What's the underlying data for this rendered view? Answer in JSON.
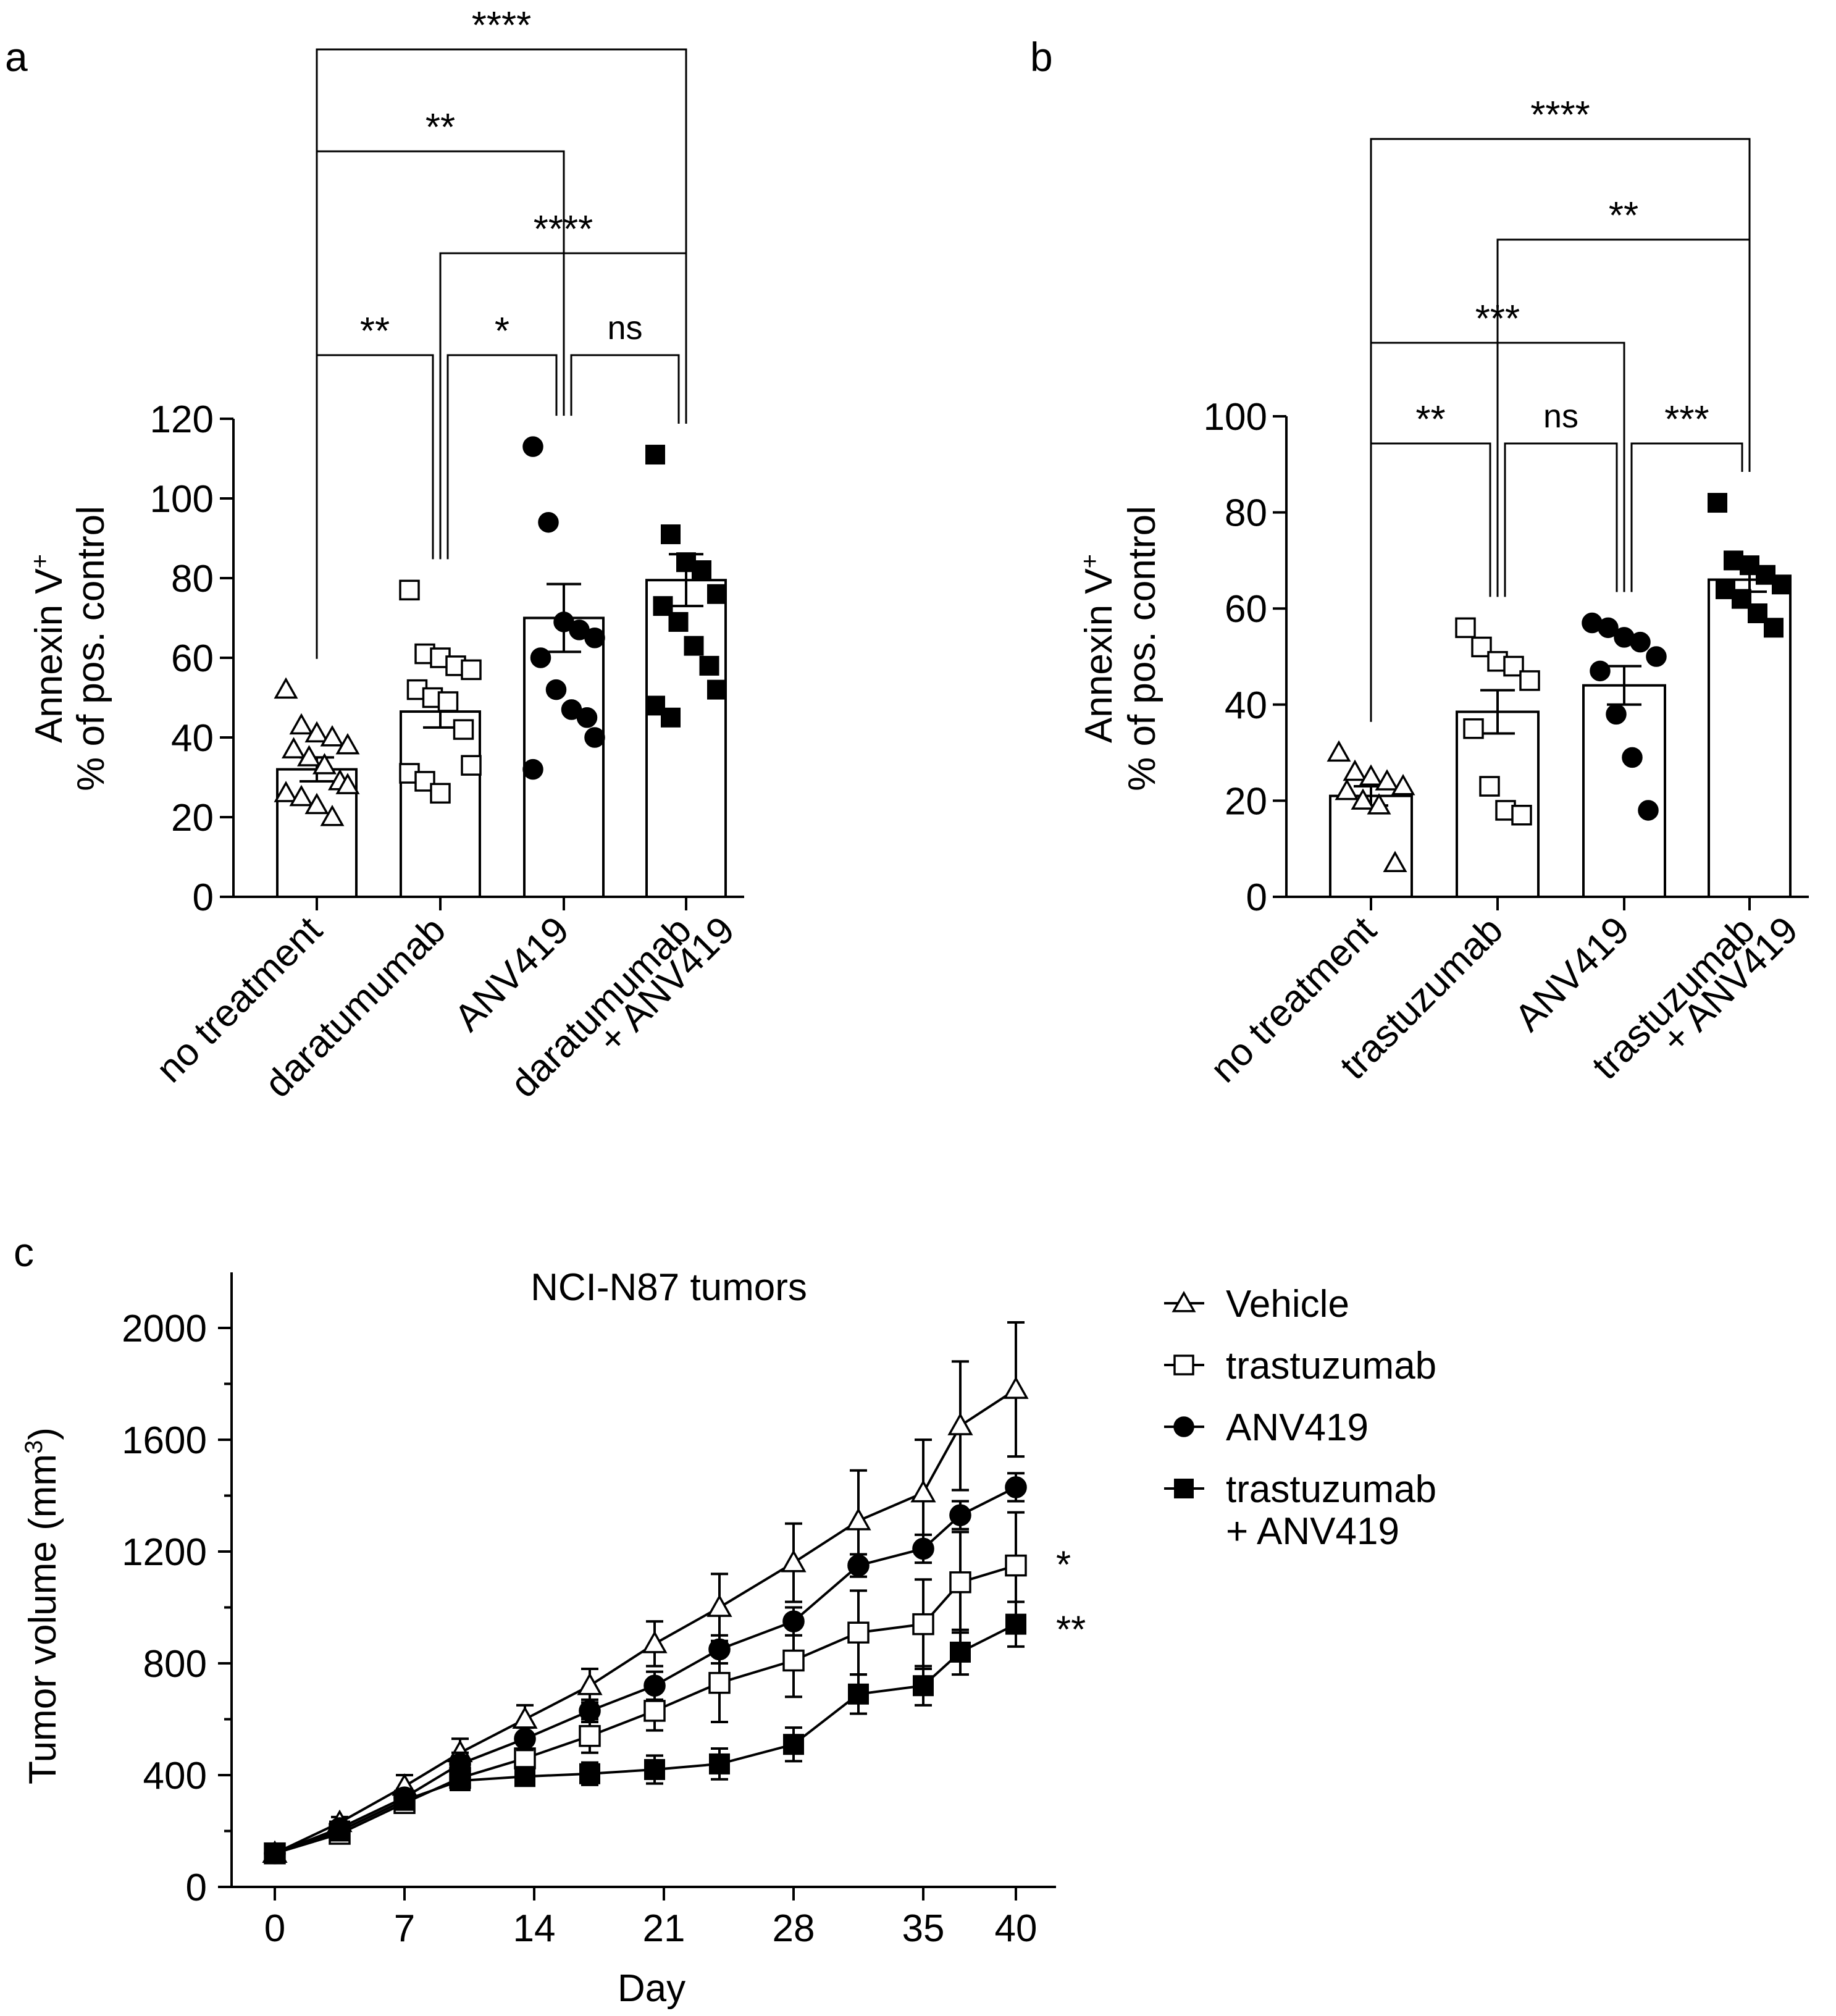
{
  "chart_data": [
    {
      "panel": "a",
      "type": "bar",
      "ylabel_line1": "Annexin V",
      "ylabel_sup": "+",
      "ylabel_line2": "% of pos. control",
      "ylim": [
        0,
        120
      ],
      "yticks": [
        0,
        20,
        40,
        60,
        80,
        100,
        120
      ],
      "categories": [
        {
          "label_lines": [
            "no treatment"
          ],
          "marker": "triangle-open",
          "mean": 32,
          "sem": 3,
          "points": [
            52,
            43,
            41,
            40,
            38,
            37,
            35,
            33,
            29,
            28,
            26,
            25,
            23,
            20
          ]
        },
        {
          "label_lines": [
            "daratumumab"
          ],
          "marker": "square-open",
          "mean": 46.5,
          "sem": 4,
          "points": [
            77,
            61,
            60,
            58,
            57,
            52,
            50,
            49,
            42,
            33,
            31,
            29,
            26
          ]
        },
        {
          "label_lines": [
            "ANV419"
          ],
          "marker": "circle-filled",
          "mean": 70,
          "sem": 8.5,
          "points": [
            113,
            94,
            69,
            67,
            65,
            60,
            52,
            47,
            45,
            40,
            32
          ]
        },
        {
          "label_lines": [
            "daratumumab",
            "+ ANV419"
          ],
          "marker": "square-filled",
          "mean": 79.5,
          "sem": 6.5,
          "points": [
            111,
            91,
            84,
            82,
            76,
            73,
            69,
            63,
            58,
            52,
            48,
            45
          ]
        }
      ],
      "comparisons": [
        {
          "from": 0,
          "to": 1,
          "label": "**"
        },
        {
          "from": 1,
          "to": 2,
          "label": "*"
        },
        {
          "from": 2,
          "to": 3,
          "label": "ns"
        },
        {
          "from": 1,
          "to": 3,
          "label": "****"
        },
        {
          "from": 0,
          "to": 2,
          "label": "**"
        },
        {
          "from": 0,
          "to": 3,
          "label": "****"
        }
      ]
    },
    {
      "panel": "b",
      "type": "bar",
      "ylabel_line1": "Annexin V",
      "ylabel_sup": "+",
      "ylabel_line2": "% of pos. control",
      "ylim": [
        0,
        100
      ],
      "yticks": [
        0,
        20,
        40,
        60,
        80,
        100
      ],
      "categories": [
        {
          "label_lines": [
            "no treatment"
          ],
          "marker": "triangle-open",
          "mean": 21,
          "sem": 2,
          "points": [
            30,
            26,
            25,
            24,
            23,
            22,
            20,
            19,
            7
          ]
        },
        {
          "label_lines": [
            "trastuzumab"
          ],
          "marker": "square-open",
          "mean": 38.5,
          "sem": 4.5,
          "points": [
            56,
            52,
            49,
            48,
            45,
            35,
            23,
            18,
            17
          ]
        },
        {
          "label_lines": [
            "ANV419"
          ],
          "marker": "circle-filled",
          "mean": 44,
          "sem": 4,
          "points": [
            57,
            56,
            54,
            53,
            50,
            47,
            38,
            29,
            18
          ]
        },
        {
          "label_lines": [
            "trastuzumab",
            "+ ANV419"
          ],
          "marker": "square-filled",
          "mean": 66,
          "sem": 2.5,
          "points": [
            82,
            70,
            69,
            67,
            65,
            64,
            62,
            59,
            56
          ]
        }
      ],
      "comparisons": [
        {
          "from": 0,
          "to": 1,
          "label": "**"
        },
        {
          "from": 1,
          "to": 2,
          "label": "ns"
        },
        {
          "from": 2,
          "to": 3,
          "label": "***"
        },
        {
          "from": 0,
          "to": 2,
          "label": "***"
        },
        {
          "from": 1,
          "to": 3,
          "label": "**"
        },
        {
          "from": 0,
          "to": 3,
          "label": "****"
        }
      ]
    },
    {
      "panel": "c",
      "type": "line",
      "title": "NCI-N87 tumors",
      "xlabel": "Day",
      "ylabel": "Tumor volume (mm",
      "ylabel_sup": "3",
      "ylabel_end": ")",
      "xlim": [
        0,
        40
      ],
      "ylim": [
        0,
        2000
      ],
      "xticks": [
        0,
        7,
        14,
        21,
        28,
        35,
        40
      ],
      "yticks": [
        0,
        400,
        800,
        1200,
        1600,
        2000
      ],
      "series": [
        {
          "name": "Vehicle",
          "marker": "triangle-open",
          "x": [
            0,
            3.5,
            7,
            10,
            13.5,
            17,
            20.5,
            24,
            28,
            31.5,
            35,
            37,
            40
          ],
          "y": [
            120,
            230,
            360,
            480,
            600,
            720,
            870,
            1000,
            1160,
            1310,
            1410,
            1650,
            1780
          ],
          "err": [
            10,
            20,
            40,
            50,
            50,
            60,
            80,
            120,
            140,
            180,
            190,
            230,
            240
          ],
          "significance": ""
        },
        {
          "name": "trastuzumab",
          "marker": "square-open",
          "x": [
            0,
            3.5,
            7,
            10,
            13.5,
            17,
            20.5,
            24,
            28,
            31.5,
            35,
            37,
            40
          ],
          "y": [
            120,
            190,
            300,
            390,
            460,
            540,
            630,
            730,
            810,
            910,
            940,
            1090,
            1150
          ],
          "err": [
            10,
            20,
            30,
            40,
            50,
            60,
            70,
            140,
            130,
            150,
            160,
            180,
            190
          ],
          "significance": "*"
        },
        {
          "name": "ANV419",
          "marker": "circle-filled",
          "x": [
            0,
            3.5,
            7,
            10,
            13.5,
            17,
            20.5,
            24,
            28,
            31.5,
            35,
            37,
            40
          ],
          "y": [
            120,
            210,
            320,
            440,
            530,
            630,
            720,
            850,
            950,
            1150,
            1210,
            1330,
            1430
          ],
          "err": [
            10,
            20,
            30,
            40,
            40,
            40,
            50,
            50,
            50,
            40,
            50,
            50,
            50
          ],
          "significance": ""
        },
        {
          "name": "trastuzumab\n+ ANV419",
          "name_lines": [
            "trastuzumab",
            "+ ANV419"
          ],
          "marker": "square-filled",
          "x": [
            0,
            3.5,
            7,
            10,
            13.5,
            17,
            20.5,
            24,
            28,
            31.5,
            35,
            37,
            40
          ],
          "y": [
            120,
            200,
            310,
            380,
            395,
            405,
            420,
            440,
            510,
            690,
            720,
            840,
            940
          ],
          "err": [
            10,
            15,
            25,
            25,
            25,
            40,
            50,
            55,
            60,
            70,
            70,
            80,
            80
          ],
          "significance": "**"
        }
      ]
    }
  ]
}
